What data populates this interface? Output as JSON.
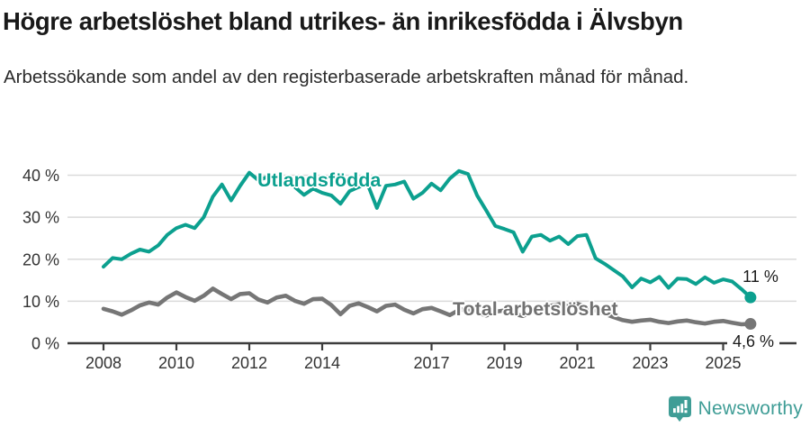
{
  "header": {
    "title": "Högre arbetslöshet bland utrikes- än inrikesfödda i Älvsbyn",
    "subtitle": "Arbetssökande som andel av den registerbaserade arbetskraften månad för månad."
  },
  "colors": {
    "accent_teal": "#0ca08f",
    "series_gray": "#767676",
    "grid": "#dadada",
    "axis": "#3d3d3d",
    "tick_text": "#333333",
    "brand_teal": "#3f9d96"
  },
  "chart_data": {
    "type": "line",
    "title": "Högre arbetslöshet bland utrikes- än inrikesfödda i Älvsbyn",
    "subtitle": "Arbetssökande som andel av den registerbaserade arbetskraften månad för månad.",
    "x_unit": "year (quarterly samples of monthly data)",
    "x_start": 2008.0,
    "x_step_years": 0.25,
    "x_ticks": [
      2008,
      2010,
      2012,
      2014,
      2017,
      2019,
      2021,
      2023,
      2025
    ],
    "x_tick_labels": [
      "2008",
      "2010",
      "2012",
      "2014",
      "2017",
      "2019",
      "2021",
      "2023",
      "2025"
    ],
    "y_ticks": [
      0,
      10,
      20,
      30,
      40
    ],
    "y_tick_suffix": " %",
    "ylim": [
      0,
      44
    ],
    "xlim": [
      2007.0,
      2027.0
    ],
    "grid": true,
    "legend_position": "inline-labels-on-lines",
    "series": [
      {
        "name": "Utlandsfödda",
        "color": "#0ca08f",
        "end_label": "11 %",
        "values": [
          18.2,
          20.3,
          20.0,
          21.3,
          22.3,
          21.8,
          23.3,
          25.8,
          27.4,
          28.2,
          27.4,
          30.0,
          34.9,
          37.8,
          34.0,
          37.5,
          40.6,
          38.8,
          39.6,
          37.8,
          38.6,
          37.2,
          35.3,
          36.8,
          35.8,
          35.2,
          33.2,
          36.2,
          37.2,
          37.8,
          32.2,
          37.5,
          37.8,
          38.5,
          34.4,
          35.8,
          38.0,
          36.4,
          39.2,
          41.0,
          40.3,
          35.2,
          31.6,
          27.9,
          27.2,
          26.4,
          21.8,
          25.4,
          25.8,
          24.4,
          25.4,
          23.6,
          25.5,
          25.8,
          20.2,
          18.9,
          17.4,
          15.9,
          13.3,
          15.4,
          14.5,
          15.8,
          13.2,
          15.4,
          15.3,
          14.1,
          15.7,
          14.4,
          15.2,
          14.7,
          12.9,
          10.9
        ]
      },
      {
        "name": "Total arbetslöshet",
        "color": "#767676",
        "end_label": "4,6 %",
        "values": [
          8.2,
          7.6,
          6.8,
          7.8,
          9.0,
          9.7,
          9.2,
          10.9,
          12.1,
          11.0,
          10.1,
          11.3,
          13.0,
          11.7,
          10.5,
          11.7,
          11.9,
          10.4,
          9.7,
          10.9,
          11.3,
          10.1,
          9.4,
          10.5,
          10.6,
          9.1,
          6.9,
          8.9,
          9.5,
          8.6,
          7.6,
          8.9,
          9.2,
          8.0,
          7.1,
          8.1,
          8.4,
          7.6,
          6.7,
          7.9,
          8.2,
          7.3,
          6.6,
          7.5,
          7.8,
          7.0,
          6.5,
          7.4,
          8.1,
          8.9,
          9.3,
          8.8,
          9.4,
          8.6,
          7.8,
          7.0,
          6.2,
          5.5,
          5.1,
          5.4,
          5.6,
          5.1,
          4.8,
          5.2,
          5.4,
          5.0,
          4.7,
          5.1,
          5.3,
          4.9,
          4.5,
          4.6
        ]
      }
    ]
  },
  "footer": {
    "brand": "Newsworthy",
    "logo_icon": "speech-bubble-bar-chart-icon"
  }
}
